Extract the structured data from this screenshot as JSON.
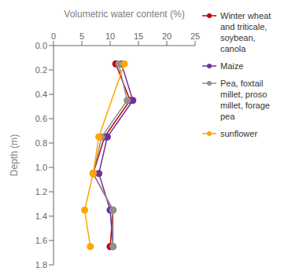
{
  "chart_data": {
    "type": "line",
    "xlabel": "Volumetric water content (%)",
    "ylabel": "Depth (m)",
    "xlim": [
      0,
      25
    ],
    "ylim": [
      1.8,
      0
    ],
    "xticks": [
      0,
      5,
      10,
      15,
      20,
      25
    ],
    "yticks": [
      {
        "value": 0,
        "label": "0.0"
      },
      0.2,
      0.4,
      0.6,
      0.8,
      {
        "value": 1.0,
        "label": "1.0"
      },
      1.2,
      1.4,
      1.6,
      1.8
    ],
    "grid": false,
    "legend": "upper right",
    "series": [
      {
        "name": "Winter wheat\nand triticale,\nsoybean,\ncanola",
        "color": "#C00000",
        "marker": "circle",
        "x": [
          11.0,
          13.5,
          9.0,
          7.0,
          10.5,
          10.0
        ],
        "values": [
          0.15,
          0.45,
          0.75,
          1.05,
          1.35,
          1.65
        ]
      },
      {
        "name": "Maize",
        "color": "#7030A0",
        "marker": "circle",
        "x": [
          12.0,
          14.0,
          9.5,
          8.0,
          10.0,
          10.5
        ],
        "values": [
          0.15,
          0.45,
          0.75,
          1.05,
          1.35,
          1.65
        ]
      },
      {
        "name": "Pea, foxtail\nmillet, proso\nmillet, forage\npea",
        "color": "#909090",
        "marker": "circle",
        "x": [
          11.5,
          13.0,
          8.5,
          7.0,
          10.5,
          10.5
        ],
        "values": [
          0.15,
          0.45,
          0.75,
          1.05,
          1.35,
          1.65
        ]
      },
      {
        "name": "sunflower",
        "color": "#FFA500",
        "marker": "circle",
        "x": [
          12.5,
          8.0,
          7.0,
          5.5,
          6.5
        ],
        "values": [
          0.15,
          0.75,
          1.05,
          1.35,
          1.65
        ]
      }
    ]
  }
}
